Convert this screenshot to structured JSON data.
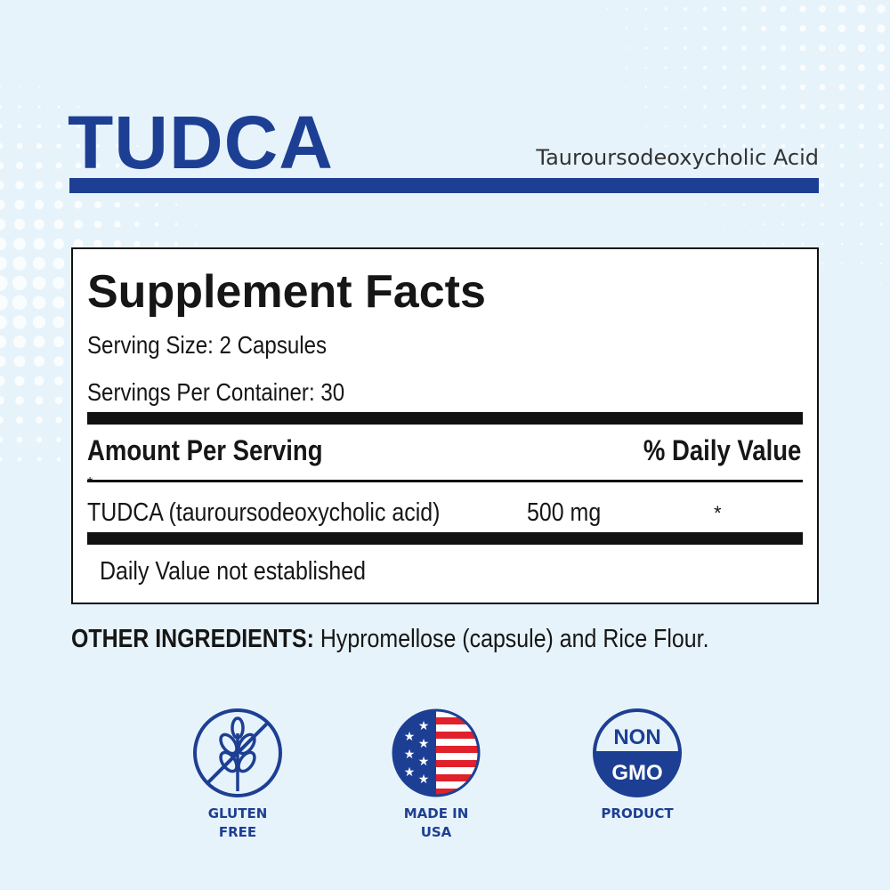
{
  "header": {
    "title": "TUDCA",
    "subtitle": "Tauroursodeoxycholic Acid"
  },
  "facts": {
    "heading": "Supplement Facts",
    "serving_size": "Serving Size: 2 Capsules",
    "servings_per_container": "Servings Per Container: 30",
    "amount_header": "Amount Per Serving",
    "dv_header": "% Daily Value",
    "rows": [
      {
        "ingredient": "TUDCA (tauroursodeoxycholic acid)",
        "amount": "500 mg",
        "dv": "*"
      }
    ],
    "footnote_marker": "*",
    "footnote": "Daily Value not established"
  },
  "other_ingredients": {
    "label": "OTHER INGREDIENTS:",
    "text": " Hypromellose (capsule) and Rice Flour."
  },
  "badges": [
    {
      "icon": "gluten-free-icon",
      "line1": "GLUTEN",
      "line2": "FREE"
    },
    {
      "icon": "usa-flag-icon",
      "line1": "MADE IN",
      "line2": "USA"
    },
    {
      "icon": "non-gmo-icon",
      "line1": "PRODUCT",
      "line2": "",
      "top": "NON",
      "bottom": "GMO"
    }
  ],
  "colors": {
    "brand_blue": "#1d3f93",
    "background": "#e7f3fb",
    "flag_red": "#e0202a"
  }
}
